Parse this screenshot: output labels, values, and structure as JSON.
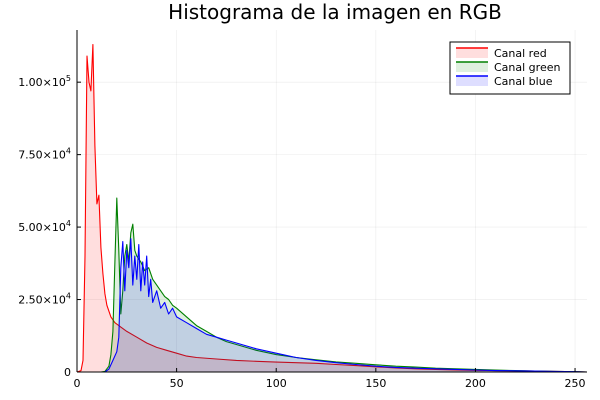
{
  "chart_data": {
    "type": "area",
    "title": "Histograma de la imagen en RGB",
    "xlabel": "",
    "ylabel": "",
    "xlim": [
      0,
      256
    ],
    "ylim": [
      0,
      118000
    ],
    "grid": true,
    "legend_position": "top-right",
    "x_ticks": [
      0,
      50,
      100,
      150,
      200,
      250
    ],
    "x_tick_labels": [
      "0",
      "50",
      "100",
      "150",
      "200",
      "250"
    ],
    "y_ticks": [
      0,
      25000,
      50000,
      75000,
      100000
    ],
    "y_tick_labels": [
      {
        "value": 0,
        "mantissa": "0",
        "exp": ""
      },
      {
        "value": 25000,
        "mantissa": "2.50×10",
        "exp": "4"
      },
      {
        "value": 50000,
        "mantissa": "5.00×10",
        "exp": "4"
      },
      {
        "value": 75000,
        "mantissa": "7.50×10",
        "exp": "4"
      },
      {
        "value": 100000,
        "mantissa": "1.00×10",
        "exp": "5"
      }
    ],
    "series": [
      {
        "name": "Canal red",
        "color": "#ff0000",
        "fill": "rgba(255,0,0,0.13)",
        "points": [
          [
            0,
            0
          ],
          [
            2,
            500
          ],
          [
            3,
            4000
          ],
          [
            4,
            40000
          ],
          [
            5,
            109000
          ],
          [
            6,
            100000
          ],
          [
            7,
            97000
          ],
          [
            8,
            113000
          ],
          [
            9,
            78000
          ],
          [
            10,
            58000
          ],
          [
            11,
            61000
          ],
          [
            12,
            43000
          ],
          [
            13,
            34000
          ],
          [
            14,
            27000
          ],
          [
            15,
            23000
          ],
          [
            17,
            19000
          ],
          [
            19,
            17000
          ],
          [
            22,
            15500
          ],
          [
            25,
            14000
          ],
          [
            30,
            12000
          ],
          [
            35,
            10000
          ],
          [
            40,
            8500
          ],
          [
            45,
            7500
          ],
          [
            50,
            6500
          ],
          [
            55,
            5500
          ],
          [
            60,
            5000
          ],
          [
            70,
            4500
          ],
          [
            80,
            4000
          ],
          [
            90,
            3700
          ],
          [
            100,
            3400
          ],
          [
            110,
            3200
          ],
          [
            120,
            3000
          ],
          [
            130,
            2600
          ],
          [
            140,
            2200
          ],
          [
            150,
            1800
          ],
          [
            160,
            1400
          ],
          [
            170,
            1100
          ],
          [
            180,
            900
          ],
          [
            190,
            700
          ],
          [
            200,
            600
          ],
          [
            210,
            500
          ],
          [
            220,
            400
          ],
          [
            230,
            300
          ],
          [
            240,
            200
          ],
          [
            250,
            100
          ],
          [
            256,
            0
          ]
        ]
      },
      {
        "name": "Canal green",
        "color": "#008000",
        "fill": "rgba(0,128,0,0.13)",
        "points": [
          [
            0,
            0
          ],
          [
            12,
            0
          ],
          [
            14,
            200
          ],
          [
            16,
            2000
          ],
          [
            17,
            6000
          ],
          [
            18,
            14000
          ],
          [
            19,
            38000
          ],
          [
            20,
            60000
          ],
          [
            21,
            42000
          ],
          [
            22,
            20000
          ],
          [
            23,
            28000
          ],
          [
            24,
            40000
          ],
          [
            25,
            44000
          ],
          [
            26,
            38000
          ],
          [
            27,
            48000
          ],
          [
            28,
            51000
          ],
          [
            29,
            42000
          ],
          [
            30,
            40000
          ],
          [
            32,
            38000
          ],
          [
            34,
            35000
          ],
          [
            36,
            36000
          ],
          [
            38,
            32000
          ],
          [
            40,
            30000
          ],
          [
            42,
            28000
          ],
          [
            44,
            26000
          ],
          [
            46,
            25000
          ],
          [
            48,
            23000
          ],
          [
            50,
            22000
          ],
          [
            55,
            19000
          ],
          [
            60,
            16000
          ],
          [
            65,
            14000
          ],
          [
            70,
            12000
          ],
          [
            75,
            10500
          ],
          [
            80,
            9500
          ],
          [
            90,
            7500
          ],
          [
            100,
            6000
          ],
          [
            110,
            5000
          ],
          [
            120,
            4200
          ],
          [
            130,
            3500
          ],
          [
            140,
            3000
          ],
          [
            150,
            2500
          ],
          [
            160,
            2000
          ],
          [
            170,
            1700
          ],
          [
            180,
            1300
          ],
          [
            190,
            1100
          ],
          [
            200,
            900
          ],
          [
            210,
            700
          ],
          [
            220,
            500
          ],
          [
            230,
            300
          ],
          [
            240,
            200
          ],
          [
            250,
            100
          ],
          [
            256,
            0
          ]
        ]
      },
      {
        "name": "Canal blue",
        "color": "#0000ff",
        "fill": "rgba(0,0,255,0.13)",
        "points": [
          [
            0,
            0
          ],
          [
            14,
            0
          ],
          [
            16,
            1000
          ],
          [
            18,
            4000
          ],
          [
            20,
            7000
          ],
          [
            21,
            12000
          ],
          [
            22,
            36000
          ],
          [
            23,
            45000
          ],
          [
            24,
            28000
          ],
          [
            25,
            42000
          ],
          [
            26,
            36000
          ],
          [
            27,
            46000
          ],
          [
            28,
            30000
          ],
          [
            29,
            40000
          ],
          [
            30,
            32000
          ],
          [
            31,
            44000
          ],
          [
            32,
            28000
          ],
          [
            33,
            38000
          ],
          [
            34,
            30000
          ],
          [
            35,
            40000
          ],
          [
            36,
            26000
          ],
          [
            37,
            32000
          ],
          [
            38,
            24000
          ],
          [
            40,
            28000
          ],
          [
            42,
            22000
          ],
          [
            44,
            24000
          ],
          [
            46,
            20000
          ],
          [
            48,
            22000
          ],
          [
            50,
            19000
          ],
          [
            55,
            17000
          ],
          [
            60,
            15000
          ],
          [
            65,
            13000
          ],
          [
            70,
            12000
          ],
          [
            75,
            11000
          ],
          [
            80,
            10000
          ],
          [
            90,
            8000
          ],
          [
            100,
            6500
          ],
          [
            110,
            5000
          ],
          [
            120,
            4000
          ],
          [
            130,
            3200
          ],
          [
            140,
            2600
          ],
          [
            150,
            2000
          ],
          [
            160,
            1600
          ],
          [
            170,
            1300
          ],
          [
            180,
            1100
          ],
          [
            190,
            900
          ],
          [
            200,
            700
          ],
          [
            210,
            500
          ],
          [
            220,
            400
          ],
          [
            230,
            300
          ],
          [
            240,
            200
          ],
          [
            250,
            100
          ],
          [
            256,
            0
          ]
        ]
      }
    ]
  }
}
